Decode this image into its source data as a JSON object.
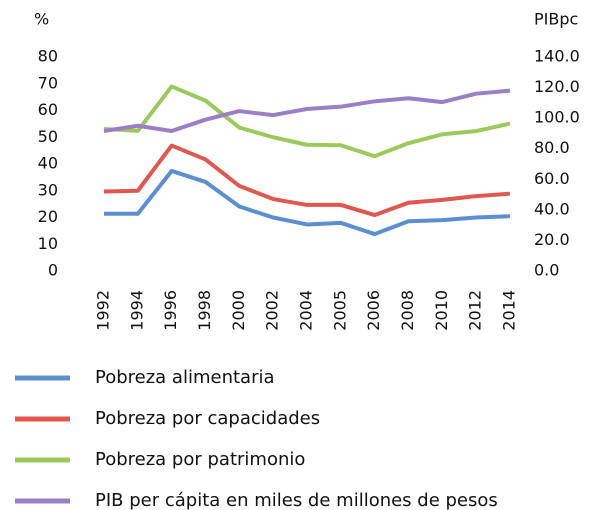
{
  "chart_data": {
    "type": "line",
    "y_label": "%",
    "y2_label": "PIBpc",
    "categories": [
      "1992",
      "1994",
      "1996",
      "1998",
      "2000",
      "2002",
      "2004",
      "2005",
      "2006",
      "2008",
      "2010",
      "2012",
      "2014"
    ],
    "series": [
      {
        "name": "Pobreza alimentaria",
        "color": "#5b8fd0",
        "values": [
          21.4,
          21.4,
          37.4,
          33.3,
          24.1,
          20.0,
          17.4,
          18.0,
          13.8,
          18.6,
          19.0,
          20.0,
          20.5
        ]
      },
      {
        "name": "Pobreza por capacidades",
        "color": "#e0574f",
        "values": [
          29.7,
          30.0,
          46.9,
          41.7,
          31.8,
          26.9,
          24.7,
          24.7,
          20.9,
          25.5,
          26.6,
          28.0,
          28.9
        ]
      },
      {
        "name": "Pobreza por patrimonio",
        "color": "#9dc85b",
        "values": [
          53.1,
          52.4,
          69.0,
          63.7,
          53.6,
          50.0,
          47.2,
          47.0,
          42.9,
          47.8,
          51.1,
          52.3,
          55.1
        ]
      },
      {
        "name": "PIB per cápita en miles de millones de pesos",
        "color": "#9b7fc6",
        "axis": "y2",
        "values": [
          91.6,
          95,
          91.6,
          99,
          104.6,
          102,
          106,
          107.5,
          111,
          113,
          110.5,
          116,
          118
        ]
      }
    ],
    "ylim": [
      0,
      80
    ],
    "yticks": [
      0,
      10,
      20,
      30,
      40,
      50,
      60,
      70,
      80
    ],
    "y2lim": [
      0,
      140
    ],
    "y2ticks": [
      {
        "value": 0,
        "label": "0.0"
      },
      {
        "value": 20,
        "label": "20.0"
      },
      {
        "value": 40,
        "label": "40.0"
      },
      {
        "value": 60,
        "label": "60.0"
      },
      {
        "value": 80,
        "label": "80.0"
      },
      {
        "value": 100,
        "label": "100.0"
      },
      {
        "value": 120,
        "label": "120.0"
      },
      {
        "value": 140,
        "label": "140.0"
      }
    ],
    "grid": false,
    "legend": "bottom"
  }
}
